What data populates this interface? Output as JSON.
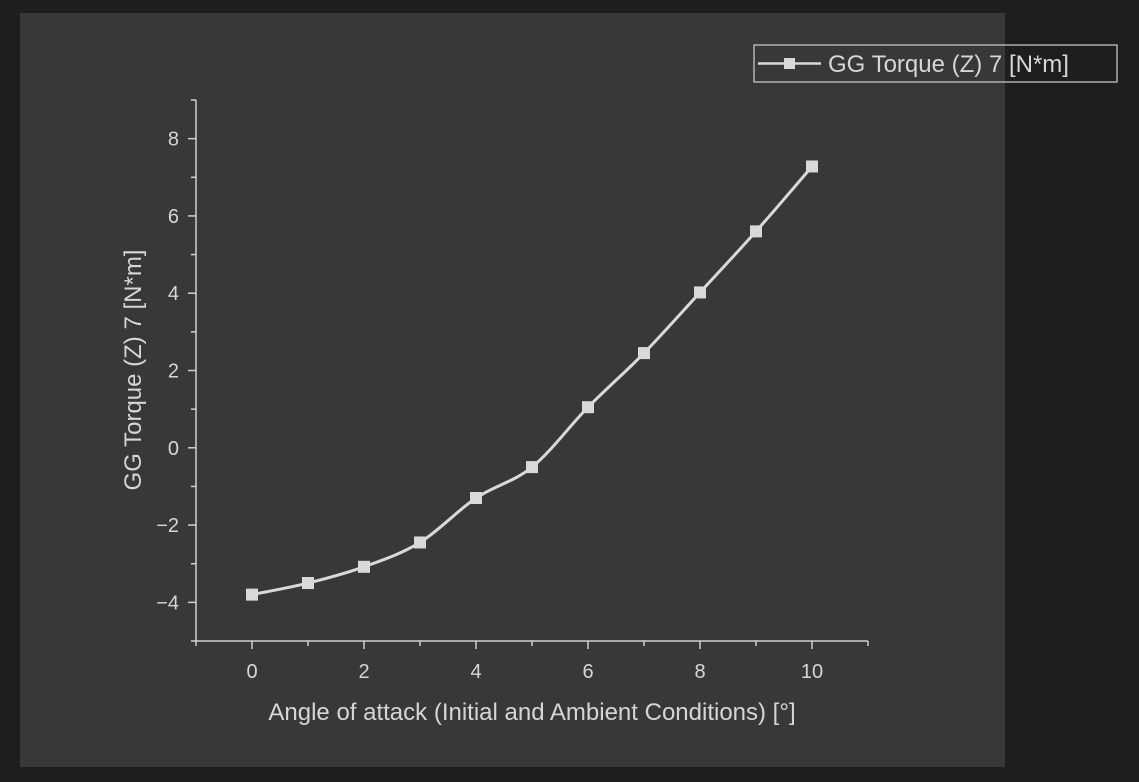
{
  "chart_data": {
    "type": "line",
    "title": "",
    "xlabel": "Angle of attack (Initial and Ambient Conditions) [°]",
    "ylabel": "GG Torque (Z) 7 [N*m]",
    "xlim": [
      -1,
      11
    ],
    "ylim": [
      -5,
      9
    ],
    "x_ticks": [
      0,
      2,
      4,
      6,
      8,
      10
    ],
    "x_tick_labels": [
      "0",
      "2",
      "4",
      "6",
      "8",
      "10"
    ],
    "y_ticks": [
      -4,
      -2,
      0,
      2,
      4,
      6,
      8
    ],
    "y_tick_labels": [
      "−4",
      "−2",
      "0",
      "2",
      "4",
      "6",
      "8"
    ],
    "grid": false,
    "legend_position": "top-right",
    "series": [
      {
        "name": "GG Torque (Z) 7 [N*m]",
        "marker": "square",
        "color": "#d9d9d9",
        "x": [
          0,
          1,
          2,
          3,
          4,
          5,
          6,
          7,
          8,
          9,
          10
        ],
        "y": [
          -3.8,
          -3.5,
          -3.08,
          -2.45,
          -1.3,
          -0.5,
          1.05,
          2.45,
          4.02,
          5.6,
          7.28
        ]
      }
    ],
    "colors": {
      "page_background": "#1e1e1e",
      "panel_background": "#383838",
      "axis": "#d0d0d0",
      "text": "#d6d6d6"
    }
  }
}
